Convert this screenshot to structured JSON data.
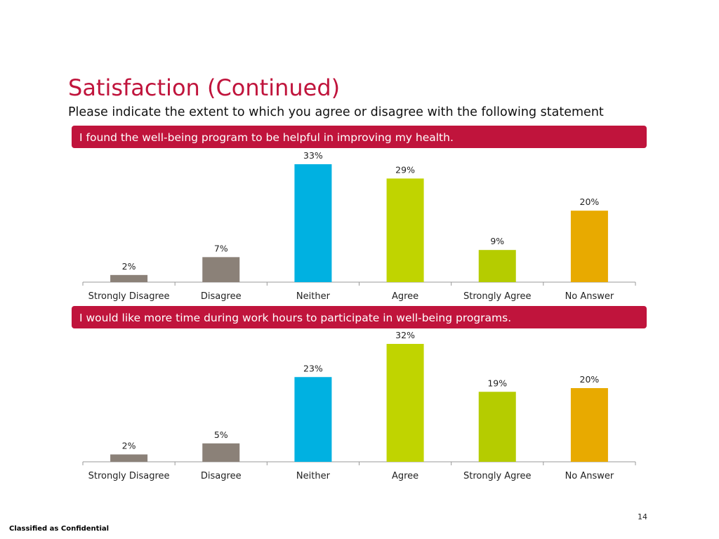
{
  "page": {
    "title": "Satisfaction (Continued)",
    "subtitle": "Please indicate the extent to which you agree or disagree with the following statement",
    "page_number": "14",
    "classification": "Classified as Confidential"
  },
  "colors": {
    "title": "#c0143c",
    "banner": "#c0143c",
    "bars": [
      "#8b8178",
      "#8b8178",
      "#00b1e1",
      "#c0d400",
      "#b5cc00",
      "#e8aa00"
    ]
  },
  "chart_data": [
    {
      "type": "bar",
      "title": "I found the well-being program to be helpful in improving my health.",
      "categories": [
        "Strongly Disagree",
        "Disagree",
        "Neither",
        "Agree",
        "Strongly Agree",
        "No Answer"
      ],
      "values": [
        2,
        7,
        33,
        29,
        9,
        20
      ],
      "data_labels": [
        "2%",
        "7%",
        "33%",
        "29%",
        "9%",
        "20%"
      ],
      "unit": "%",
      "ylim": [
        0,
        33
      ],
      "grid": false,
      "legend": false
    },
    {
      "type": "bar",
      "title": "I would like more time during work hours to participate in well-being programs.",
      "categories": [
        "Strongly Disagree",
        "Disagree",
        "Neither",
        "Agree",
        "Strongly Agree",
        "No Answer"
      ],
      "values": [
        2,
        5,
        23,
        32,
        19,
        20
      ],
      "data_labels": [
        "2%",
        "5%",
        "23%",
        "32%",
        "19%",
        "20%"
      ],
      "unit": "%",
      "ylim": [
        0,
        32
      ],
      "grid": false,
      "legend": false
    }
  ]
}
